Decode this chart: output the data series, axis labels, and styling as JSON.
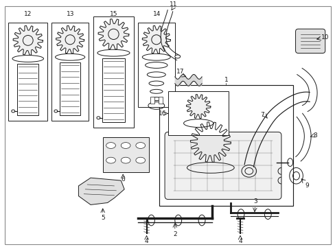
{
  "bg_color": "#ffffff",
  "lc": "#1a1a1a",
  "fig_width": 4.89,
  "fig_height": 3.6,
  "dpi": 100,
  "lw": 0.7,
  "box_bg": "#efefef",
  "label_fs": 6.5
}
